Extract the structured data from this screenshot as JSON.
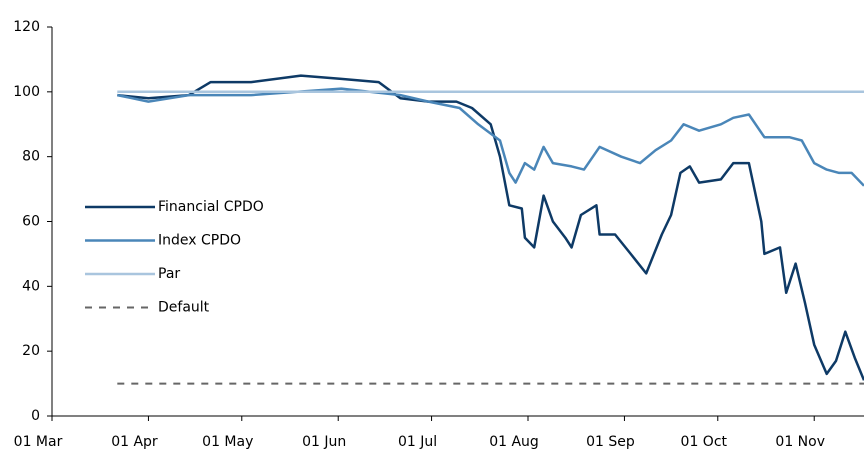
{
  "chart_data": {
    "type": "line",
    "xlim": [
      0,
      261
    ],
    "xticks": [
      {
        "value": 0,
        "label": "01 Mar"
      },
      {
        "value": 31,
        "label": "01 Apr"
      },
      {
        "value": 61,
        "label": "01 May"
      },
      {
        "value": 92,
        "label": "01 Jun"
      },
      {
        "value": 122,
        "label": "01 Jul"
      },
      {
        "value": 153,
        "label": "01 Aug"
      },
      {
        "value": 184,
        "label": "01 Sep"
      },
      {
        "value": 214,
        "label": "01 Oct"
      },
      {
        "value": 245,
        "label": "01 Nov"
      }
    ],
    "ylim": [
      0,
      120
    ],
    "yticks": [
      0,
      20,
      40,
      60,
      80,
      100,
      120
    ],
    "legend": "left",
    "series": [
      {
        "name": "Financial CPDO",
        "color": "#0e3a66",
        "x": [
          21,
          31,
          44,
          51,
          64,
          80,
          93,
          105,
          112,
          121,
          130,
          135,
          141,
          144,
          147,
          151,
          152,
          155,
          158,
          161,
          165,
          167,
          170,
          175,
          176,
          181,
          186,
          191,
          196,
          199,
          202,
          205,
          208,
          215,
          219,
          224,
          228,
          229,
          234,
          236,
          239,
          242,
          245,
          249,
          252,
          255,
          258,
          261
        ],
        "values": [
          99,
          98,
          99,
          103,
          103,
          105,
          104,
          103,
          98,
          97,
          97,
          95,
          90,
          80,
          65,
          64,
          55,
          52,
          68,
          60,
          55,
          52,
          62,
          65,
          56,
          56,
          50,
          44,
          56,
          62,
          75,
          77,
          72,
          73,
          78,
          78,
          60,
          50,
          52,
          38,
          47,
          35,
          22,
          13,
          17,
          26,
          18,
          11
        ]
      },
      {
        "name": "Index CPDO",
        "color": "#4a86b8",
        "x": [
          21,
          31,
          44,
          64,
          93,
          112,
          121,
          131,
          137,
          144,
          147,
          149,
          152,
          155,
          158,
          161,
          167,
          171,
          176,
          183,
          189,
          194,
          199,
          203,
          208,
          215,
          219,
          224,
          229,
          237,
          241,
          245,
          249,
          253,
          257,
          261
        ],
        "values": [
          99,
          97,
          99,
          99,
          101,
          99,
          97,
          95,
          90,
          85,
          75,
          72,
          78,
          76,
          83,
          78,
          77,
          76,
          83,
          80,
          78,
          82,
          85,
          90,
          88,
          90,
          92,
          93,
          86,
          86,
          85,
          78,
          76,
          75,
          75,
          71
        ]
      },
      {
        "name": "Par",
        "color": "#a9c5de",
        "x": [
          21,
          261
        ],
        "values": [
          100,
          100
        ]
      },
      {
        "name": "Default",
        "color": "#666666",
        "dash": true,
        "x": [
          21,
          261
        ],
        "values": [
          10,
          10
        ]
      }
    ]
  }
}
